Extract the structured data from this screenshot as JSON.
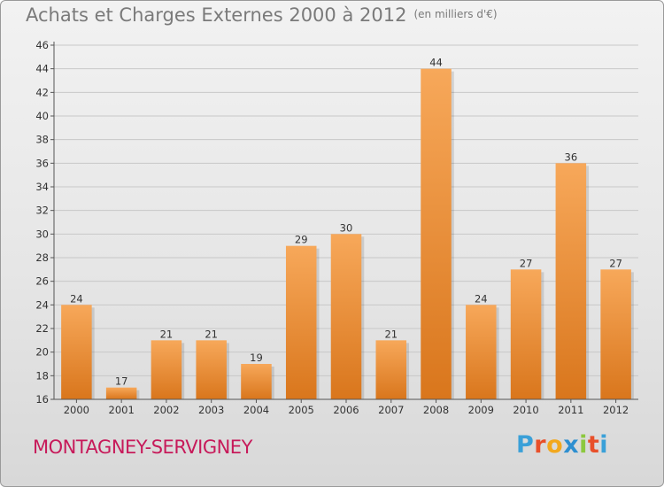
{
  "header": {
    "title": "Achats et Charges Externes 2000 à 2012",
    "unit": "(en milliers d'€)"
  },
  "footer": {
    "town": "MONTAGNEY-SERVIGNEY",
    "logo": [
      "P",
      "r",
      "o",
      "x",
      "i",
      "t",
      "i"
    ]
  },
  "colors": {
    "bar_light": "#f7a85a",
    "bar_dark": "#d9761c",
    "grid": "#c8c8c8",
    "axis": "#555555",
    "title": "#7a7a7a",
    "town": "#c71a5a"
  },
  "chart_data": {
    "type": "bar",
    "title": "Achats et Charges Externes 2000 à 2012",
    "subtitle": "(en milliers d'€)",
    "categories": [
      "2000",
      "2001",
      "2002",
      "2003",
      "2004",
      "2005",
      "2006",
      "2007",
      "2008",
      "2009",
      "2010",
      "2011",
      "2012"
    ],
    "values": [
      24,
      17,
      21,
      21,
      19,
      29,
      30,
      21,
      44,
      24,
      27,
      36,
      27
    ],
    "ylim": [
      16,
      46
    ],
    "yticks": [
      16,
      18,
      20,
      22,
      24,
      26,
      28,
      30,
      32,
      34,
      36,
      38,
      40,
      42,
      44,
      46
    ],
    "grid": true,
    "legend": "none"
  }
}
